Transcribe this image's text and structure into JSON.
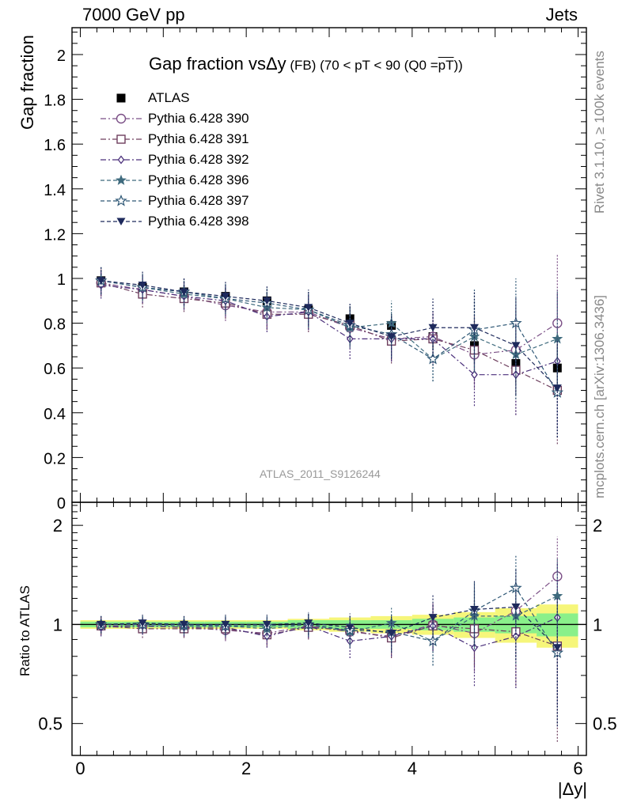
{
  "header": {
    "left": "7000 GeV pp",
    "right": "Jets"
  },
  "side": {
    "rivet": "Rivet 3.1.10, ≥ 100k events",
    "mcplots": "mcplots.cern.ch [arXiv:1306.3436]"
  },
  "title": {
    "main": "Gap fraction vs",
    "delta_y": "Δy",
    "suffix": " (FB) (70 < pT <  90 (Q0 =",
    "pt_bar": "pT",
    "close": "))"
  },
  "analysis_label": "ATLAS_2011_S9126244",
  "colors": {
    "atlas": "#000000",
    "p390": "#7b4f86",
    "p391": "#6e3f5e",
    "p392": "#4a2f7a",
    "p396": "#3f6b7e",
    "p397": "#2f5876",
    "p398": "#1e2a5c",
    "band_green": "#8af08a",
    "band_yellow": "#f6f67a"
  },
  "chart_data": [
    {
      "type": "scatter",
      "title": "Gap fraction vs Δy (FB) (70 < pT <  90 (Q0 = pT))",
      "xlabel": "|Δy|",
      "ylabel": "Gap fraction",
      "xlim": [
        -0.1,
        6.1
      ],
      "ylim": [
        0,
        2.12
      ],
      "yticks": [
        0,
        0.2,
        0.4,
        0.6,
        0.8,
        1,
        1.2,
        1.4,
        1.6,
        1.8,
        2
      ],
      "ytick_labels": [
        "0",
        "0.2",
        "0.4",
        "0.6",
        "0.8",
        "1",
        "1.2",
        "1.4",
        "1.6",
        "1.8",
        "2"
      ],
      "x": [
        0.25,
        0.75,
        1.25,
        1.75,
        2.25,
        2.75,
        3.25,
        3.75,
        4.25,
        4.75,
        5.25,
        5.75
      ],
      "legend_position": "top-left",
      "series": [
        {
          "name": "ATLAS",
          "key": "atlas",
          "marker": "square-filled",
          "line": "none",
          "values": [
            0.99,
            0.96,
            0.94,
            0.92,
            0.9,
            0.86,
            0.82,
            0.79,
            0.74,
            0.7,
            0.62,
            0.6
          ],
          "errors": [
            0.03,
            0.03,
            0.03,
            0.04,
            0.04,
            0.04,
            0.05,
            0.05,
            0.06,
            0.07,
            0.09,
            0.1
          ]
        },
        {
          "name": "Pythia 6.428 390",
          "key": "p390",
          "marker": "circle-open",
          "line": "dashdot",
          "values": [
            0.98,
            0.95,
            0.92,
            0.88,
            0.85,
            0.85,
            0.78,
            0.73,
            0.74,
            0.66,
            0.68,
            0.8
          ],
          "errors": [
            0.06,
            0.06,
            0.06,
            0.07,
            0.07,
            0.08,
            0.09,
            0.1,
            0.12,
            0.15,
            0.2,
            0.31
          ]
        },
        {
          "name": "Pythia 6.428 391",
          "key": "p391",
          "marker": "square-open",
          "line": "dashdot",
          "values": [
            0.98,
            0.93,
            0.91,
            0.89,
            0.84,
            0.84,
            0.79,
            0.72,
            0.73,
            0.68,
            0.59,
            0.5
          ],
          "errors": [
            0.06,
            0.06,
            0.06,
            0.07,
            0.07,
            0.08,
            0.09,
            0.1,
            0.12,
            0.15,
            0.2,
            0.24
          ]
        },
        {
          "name": "Pythia 6.428 392",
          "key": "p392",
          "marker": "diamond-open",
          "line": "dashdot",
          "values": [
            0.97,
            0.95,
            0.92,
            0.9,
            0.83,
            0.85,
            0.73,
            0.73,
            0.73,
            0.57,
            0.57,
            0.63
          ],
          "errors": [
            0.06,
            0.06,
            0.06,
            0.07,
            0.07,
            0.08,
            0.09,
            0.1,
            0.12,
            0.14,
            0.18,
            0.3
          ]
        },
        {
          "name": "Pythia 6.428 396",
          "key": "p396",
          "marker": "star-filled",
          "line": "dashed",
          "values": [
            0.99,
            0.96,
            0.93,
            0.91,
            0.87,
            0.86,
            0.78,
            0.8,
            0.64,
            0.74,
            0.66,
            0.73
          ],
          "errors": [
            0.06,
            0.06,
            0.06,
            0.07,
            0.07,
            0.08,
            0.09,
            0.1,
            0.1,
            0.16,
            0.2,
            0.22
          ]
        },
        {
          "name": "Pythia 6.428 397",
          "key": "p397",
          "marker": "star-open",
          "line": "dashed",
          "values": [
            0.99,
            0.96,
            0.94,
            0.91,
            0.89,
            0.86,
            0.79,
            0.75,
            0.64,
            0.77,
            0.8,
            0.49
          ],
          "errors": [
            0.06,
            0.06,
            0.06,
            0.07,
            0.07,
            0.08,
            0.09,
            0.1,
            0.1,
            0.18,
            0.2,
            0.2
          ]
        },
        {
          "name": "Pythia 6.428 398",
          "key": "p398",
          "marker": "triangle-down-filled",
          "line": "dashed",
          "values": [
            0.99,
            0.97,
            0.94,
            0.92,
            0.9,
            0.87,
            0.8,
            0.74,
            0.78,
            0.78,
            0.7,
            0.51
          ],
          "errors": [
            0.06,
            0.06,
            0.06,
            0.07,
            0.07,
            0.08,
            0.09,
            0.1,
            0.13,
            0.16,
            0.22,
            0.22
          ]
        }
      ]
    },
    {
      "type": "scatter",
      "xlabel": "|Δy|",
      "ylabel": "Ratio to ATLAS",
      "xlim": [
        -0.1,
        6.1
      ],
      "ylim": [
        0.4,
        2.35
      ],
      "ylog": true,
      "xticks": [
        0,
        2,
        4,
        6
      ],
      "xtick_labels": [
        "0",
        "2",
        "4",
        "6"
      ],
      "yticks": [
        0.5,
        1,
        2
      ],
      "ytick_labels": [
        "0.5",
        "1",
        "2"
      ],
      "x": [
        0.25,
        0.75,
        1.25,
        1.75,
        2.25,
        2.75,
        3.25,
        3.75,
        4.25,
        4.75,
        5.25,
        5.75
      ],
      "band_green": [
        0.02,
        0.02,
        0.02,
        0.02,
        0.02,
        0.03,
        0.03,
        0.03,
        0.04,
        0.05,
        0.06,
        0.08
      ],
      "band_yellow": [
        0.03,
        0.03,
        0.03,
        0.03,
        0.03,
        0.04,
        0.05,
        0.06,
        0.07,
        0.09,
        0.12,
        0.15
      ],
      "series": [
        {
          "key": "p390",
          "marker": "circle-open",
          "line": "dashdot",
          "values": [
            0.99,
            0.99,
            0.98,
            0.96,
            0.94,
            0.99,
            0.95,
            0.92,
            1.0,
            0.94,
            1.1,
            1.4
          ],
          "errors": [
            0.06,
            0.06,
            0.06,
            0.07,
            0.07,
            0.08,
            0.1,
            0.12,
            0.16,
            0.22,
            0.3,
            0.45
          ]
        },
        {
          "key": "p391",
          "marker": "square-open",
          "line": "dashdot",
          "values": [
            0.99,
            0.97,
            0.97,
            0.97,
            0.93,
            0.98,
            0.96,
            0.91,
            0.99,
            0.97,
            0.95,
            0.86
          ],
          "errors": [
            0.06,
            0.06,
            0.06,
            0.07,
            0.07,
            0.08,
            0.1,
            0.12,
            0.16,
            0.22,
            0.3,
            0.42
          ]
        },
        {
          "key": "p392",
          "marker": "diamond-open",
          "line": "dashdot",
          "values": [
            0.98,
            0.99,
            0.98,
            0.98,
            0.92,
            0.99,
            0.89,
            0.92,
            0.99,
            0.85,
            0.92,
            1.05
          ],
          "errors": [
            0.06,
            0.06,
            0.06,
            0.07,
            0.07,
            0.08,
            0.1,
            0.12,
            0.16,
            0.2,
            0.28,
            0.48
          ]
        },
        {
          "key": "p396",
          "marker": "star-filled",
          "line": "dashed",
          "values": [
            1.0,
            1.0,
            0.99,
            0.99,
            0.97,
            1.0,
            0.95,
            1.01,
            0.89,
            1.06,
            1.06,
            1.22
          ],
          "errors": [
            0.06,
            0.06,
            0.06,
            0.07,
            0.07,
            0.08,
            0.1,
            0.12,
            0.14,
            0.22,
            0.3,
            0.36
          ]
        },
        {
          "key": "p397",
          "marker": "star-open",
          "line": "dashed",
          "values": [
            1.0,
            1.0,
            1.0,
            0.99,
            0.99,
            1.0,
            0.96,
            0.95,
            0.89,
            1.1,
            1.29,
            0.82
          ],
          "errors": [
            0.06,
            0.06,
            0.06,
            0.07,
            0.07,
            0.08,
            0.1,
            0.12,
            0.14,
            0.25,
            0.33,
            0.32
          ]
        },
        {
          "key": "p398",
          "marker": "triangle-down-filled",
          "line": "dashed",
          "values": [
            1.0,
            1.01,
            1.0,
            1.0,
            1.0,
            1.01,
            0.98,
            0.94,
            1.05,
            1.11,
            1.13,
            0.85
          ],
          "errors": [
            0.06,
            0.06,
            0.06,
            0.07,
            0.07,
            0.08,
            0.1,
            0.12,
            0.18,
            0.25,
            0.35,
            0.36
          ]
        }
      ]
    }
  ]
}
